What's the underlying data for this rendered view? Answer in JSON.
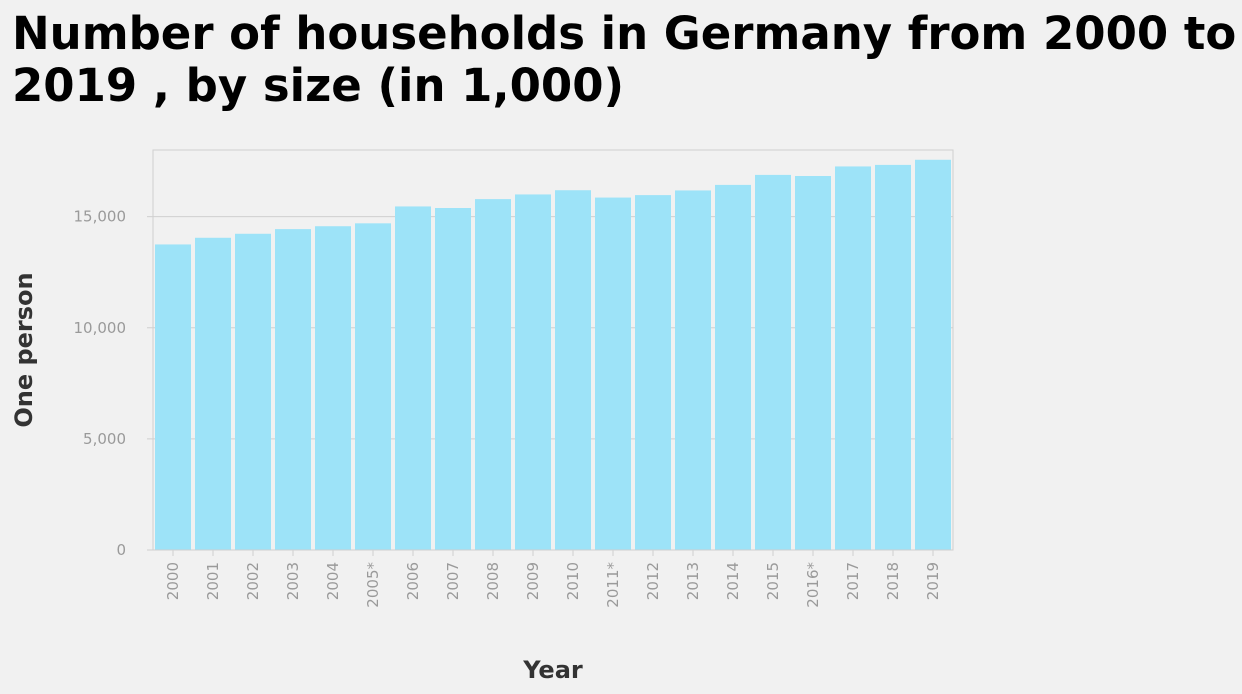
{
  "chart_data": {
    "type": "bar",
    "title": "Number of households in Germany from 2000 to 2019 , by size (in 1,000)",
    "xlabel": "Year",
    "ylabel": "One person",
    "categories": [
      "2000",
      "2001",
      "2002",
      "2003",
      "2004",
      "2005*",
      "2006",
      "2007",
      "2008",
      "2009",
      "2010",
      "2011*",
      "2012",
      "2013",
      "2014",
      "2015",
      "2016*",
      "2017",
      "2018",
      "2019"
    ],
    "values": [
      13750,
      14050,
      14230,
      14440,
      14570,
      14700,
      15460,
      15390,
      15790,
      16000,
      16190,
      15860,
      15970,
      16180,
      16430,
      16880,
      16830,
      17260,
      17330,
      17560
    ],
    "ylim": [
      0,
      18000
    ],
    "yticks": [
      0,
      5000,
      10000,
      15000
    ],
    "ytick_labels": [
      "0",
      "5,000",
      "10,000",
      "15,000"
    ],
    "grid": true,
    "legend": "none",
    "bar_color": "#9de3f8"
  }
}
